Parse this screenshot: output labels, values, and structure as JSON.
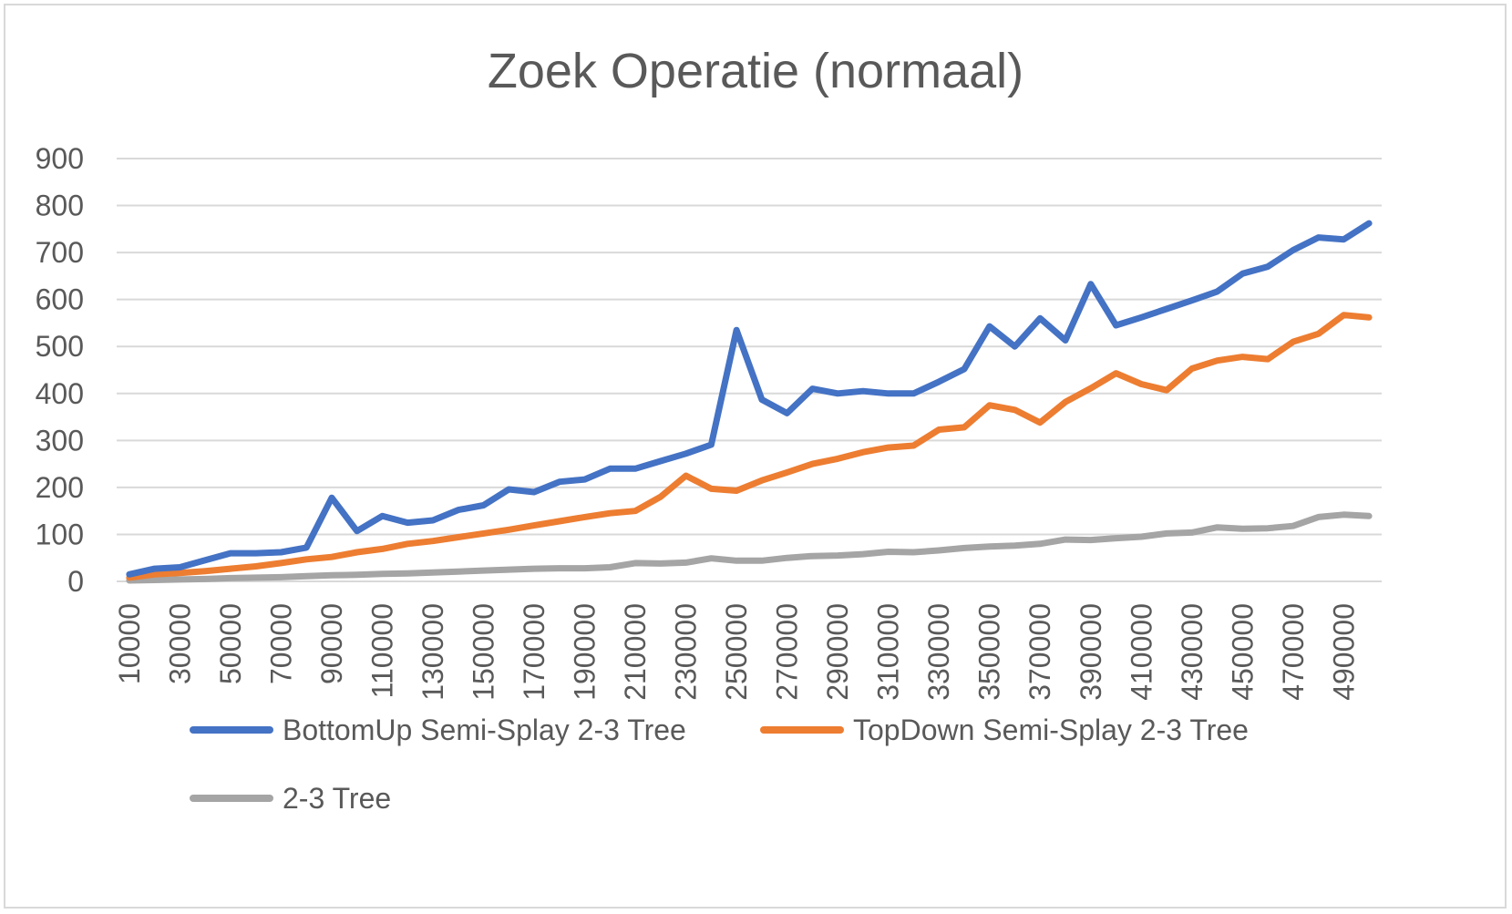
{
  "chart_data": {
    "type": "line",
    "title": "Zoek Operatie (normaal)",
    "xlabel": "",
    "ylabel": "",
    "ylim": [
      0,
      900
    ],
    "yticks": [
      0,
      100,
      200,
      300,
      400,
      500,
      600,
      700,
      800,
      900
    ],
    "grid": true,
    "legend_position": "bottom",
    "x": [
      10000,
      20000,
      30000,
      40000,
      50000,
      60000,
      70000,
      80000,
      90000,
      100000,
      110000,
      120000,
      130000,
      140000,
      150000,
      160000,
      170000,
      180000,
      190000,
      200000,
      210000,
      220000,
      230000,
      240000,
      250000,
      260000,
      270000,
      280000,
      290000,
      300000,
      310000,
      320000,
      330000,
      340000,
      350000,
      360000,
      370000,
      380000,
      390000,
      400000,
      410000,
      420000,
      430000,
      440000,
      450000,
      460000,
      470000,
      480000,
      490000,
      500000
    ],
    "xtick_labels": [
      "10000",
      "30000",
      "50000",
      "70000",
      "90000",
      "110000",
      "130000",
      "150000",
      "170000",
      "190000",
      "210000",
      "230000",
      "250000",
      "270000",
      "290000",
      "310000",
      "330000",
      "350000",
      "370000",
      "390000",
      "410000",
      "430000",
      "450000",
      "470000",
      "490000"
    ],
    "series": [
      {
        "name": "BottomUp Semi-Splay 2-3 Tree",
        "color": "#4472c4",
        "values": [
          15,
          27,
          30,
          45,
          60,
          60,
          62,
          72,
          178,
          107,
          139,
          125,
          130,
          152,
          162,
          196,
          190,
          212,
          217,
          240,
          240,
          256,
          272,
          291,
          535,
          387,
          358,
          410,
          400,
          405,
          400,
          400,
          425,
          452,
          543,
          500,
          560,
          513,
          633,
          545,
          562,
          580,
          598,
          617,
          655,
          670,
          705,
          732,
          728,
          762
        ]
      },
      {
        "name": "TopDown Semi-Splay 2-3 Tree",
        "color": "#ed7d31",
        "values": [
          8,
          15,
          18,
          22,
          27,
          32,
          39,
          47,
          52,
          62,
          69,
          80,
          86,
          94,
          102,
          110,
          119,
          128,
          137,
          145,
          150,
          180,
          225,
          197,
          193,
          215,
          232,
          250,
          261,
          275,
          285,
          289,
          323,
          328,
          375,
          365,
          338,
          382,
          411,
          443,
          420,
          407,
          453,
          470,
          478,
          473,
          510,
          527,
          567,
          562
        ]
      },
      {
        "name": "2-3 Tree",
        "color": "#a5a5a5",
        "values": [
          2,
          3,
          4,
          5,
          7,
          8,
          9,
          11,
          13,
          14,
          16,
          17,
          19,
          21,
          23,
          25,
          27,
          28,
          28,
          30,
          39,
          38,
          40,
          49,
          44,
          44,
          50,
          54,
          55,
          58,
          63,
          62,
          66,
          71,
          74,
          76,
          80,
          89,
          88,
          92,
          95,
          102,
          104,
          115,
          112,
          113,
          118,
          137,
          142,
          139
        ]
      }
    ]
  }
}
